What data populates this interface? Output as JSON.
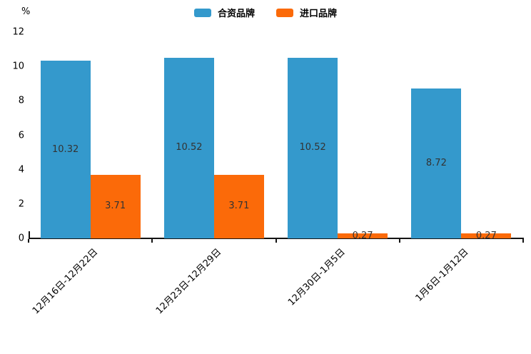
{
  "chart_data": {
    "type": "bar",
    "title": "",
    "ylabel": "%",
    "xlabel": "",
    "ylim": [
      0,
      12
    ],
    "yticks": [
      0,
      2,
      4,
      6,
      8,
      10,
      12
    ],
    "grid": false,
    "legend_position": "top",
    "value_labels_shown": true,
    "axis_color": "#141414",
    "value_label_color": "#333333",
    "categories": [
      "12月16日-12月22日",
      "12月23日-12月29日",
      "12月30日-1月5日",
      "1月6日-1月12日"
    ],
    "series": [
      {
        "name": "合资品牌",
        "color": "#3499cc",
        "values": [
          10.32,
          10.52,
          10.52,
          8.72
        ]
      },
      {
        "name": "进口品牌",
        "color": "#fb6a09",
        "values": [
          3.71,
          3.71,
          0.27,
          0.27
        ]
      }
    ]
  }
}
